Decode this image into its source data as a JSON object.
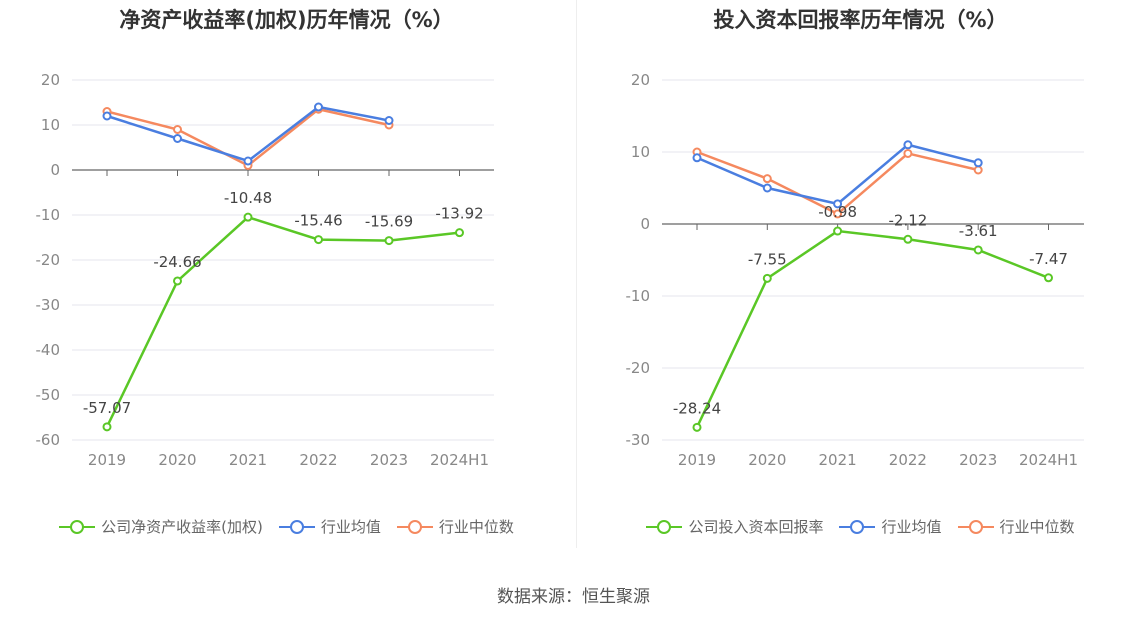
{
  "source_label": "数据来源：恒生聚源",
  "chart_data": [
    {
      "type": "line",
      "title": "净资产收益率(加权)历年情况（%）",
      "categories": [
        "2019",
        "2020",
        "2021",
        "2022",
        "2023",
        "2024H1"
      ],
      "yticks": [
        20,
        10,
        0,
        -10,
        -20,
        -30,
        -40,
        -50,
        -60
      ],
      "ylim": [
        -60,
        20
      ],
      "grid": true,
      "legend_position": "bottom-center",
      "series": [
        {
          "name": "公司净资产收益率(加权)",
          "color": "#5ac726",
          "values": [
            -57.07,
            -24.66,
            -10.48,
            -15.46,
            -15.69,
            -13.92
          ],
          "labels": [
            "-57.07",
            "-24.66",
            "-10.48",
            "-15.46",
            "-15.69",
            "-13.92"
          ]
        },
        {
          "name": "行业均值",
          "color": "#4a7ee0",
          "values": [
            12,
            7,
            2,
            14,
            11,
            null
          ]
        },
        {
          "name": "行业中位数",
          "color": "#f5895f",
          "values": [
            13,
            9,
            1,
            13.5,
            10,
            null
          ]
        }
      ]
    },
    {
      "type": "line",
      "title": "投入资本回报率历年情况（%）",
      "categories": [
        "2019",
        "2020",
        "2021",
        "2022",
        "2023",
        "2024H1"
      ],
      "yticks": [
        20,
        10,
        0,
        -10,
        -20,
        -30
      ],
      "ylim": [
        -30,
        20
      ],
      "grid": true,
      "legend_position": "bottom-center",
      "series": [
        {
          "name": "公司投入资本回报率",
          "color": "#5ac726",
          "values": [
            -28.24,
            -7.55,
            -0.98,
            -2.12,
            -3.61,
            -7.47
          ],
          "labels": [
            "-28.24",
            "-7.55",
            "-0.98",
            "-2.12",
            "-3.61",
            "-7.47"
          ]
        },
        {
          "name": "行业均值",
          "color": "#4a7ee0",
          "values": [
            9.2,
            5,
            2.8,
            11,
            8.5,
            null
          ]
        },
        {
          "name": "行业中位数",
          "color": "#f5895f",
          "values": [
            10,
            6.3,
            1.4,
            9.8,
            7.5,
            null
          ]
        }
      ]
    }
  ]
}
